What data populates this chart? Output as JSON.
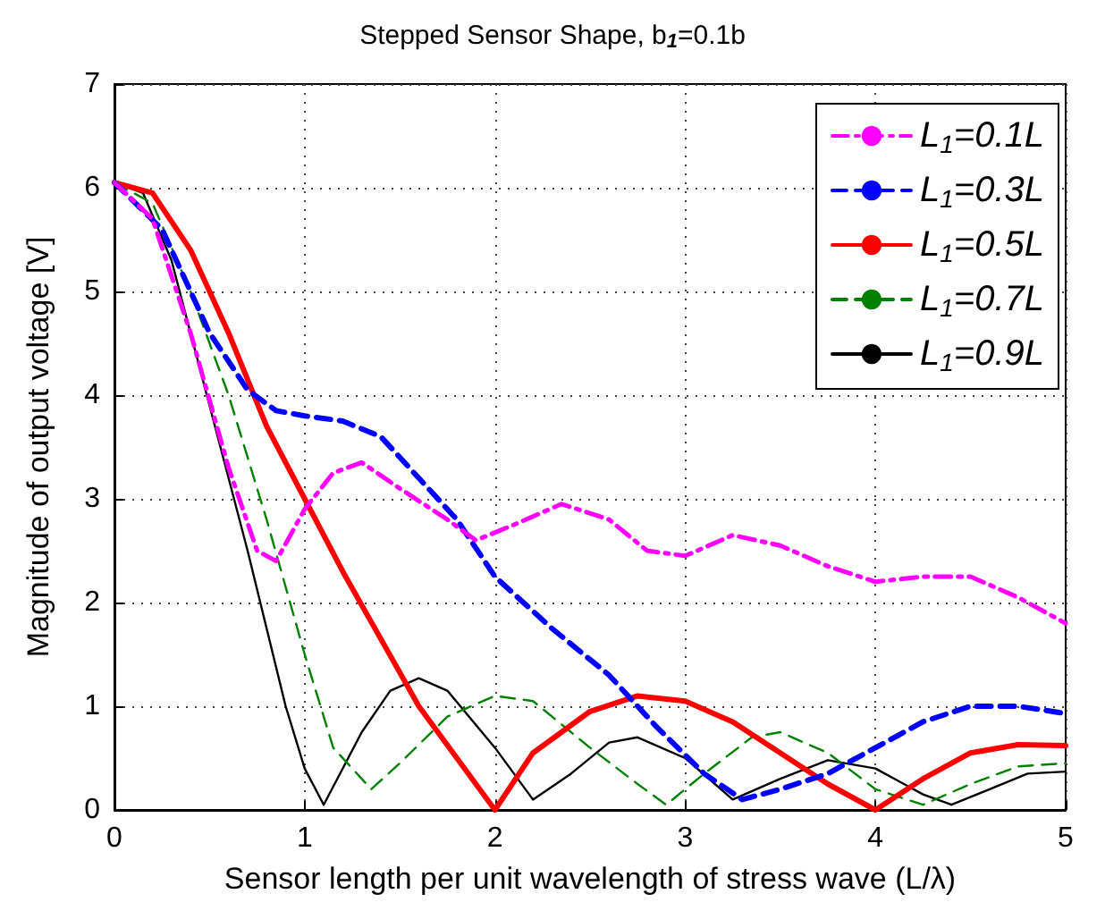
{
  "chart_data": {
    "type": "line",
    "title": "Stepped Sensor Shape, b$_{1}$=0.1b",
    "xlabel": "Sensor length per unit wavelength of stress wave (L/λ)",
    "ylabel": "Magnitude of output voltage [V]",
    "xlim": [
      0,
      5
    ],
    "xticks": [
      0,
      1,
      2,
      3,
      4,
      5
    ],
    "ylim": [
      0,
      7
    ],
    "yticks": [
      0,
      1,
      2,
      3,
      4,
      5,
      6,
      7
    ],
    "grid": true,
    "legend": "top right",
    "marker": "none",
    "series": [
      {
        "name": "L$_{1}$=0.1L",
        "color": "#ff00ff",
        "line_style": "dashdot",
        "x": [
          0,
          0.2,
          0.4,
          0.6,
          0.75,
          0.85,
          1.0,
          1.15,
          1.3,
          1.5,
          1.75,
          1.9,
          2.1,
          2.35,
          2.6,
          2.8,
          3.0,
          3.25,
          3.5,
          3.75,
          4.0,
          4.25,
          4.5,
          4.75,
          5
        ],
        "values": [
          6.05,
          5.7,
          4.6,
          3.3,
          2.5,
          2.4,
          2.9,
          3.25,
          3.35,
          3.1,
          2.8,
          2.6,
          2.75,
          2.95,
          2.8,
          2.5,
          2.45,
          2.65,
          2.55,
          2.35,
          2.2,
          2.25,
          2.25,
          2.05,
          1.8
        ]
      },
      {
        "name": "L$_{1}$=0.3L",
        "color": "#0000ff",
        "line_style": "dashed",
        "x": [
          0,
          0.25,
          0.5,
          0.7,
          0.85,
          1.0,
          1.2,
          1.4,
          1.6,
          1.8,
          2.0,
          2.3,
          2.6,
          2.85,
          3.1,
          3.3,
          3.5,
          3.75,
          4.0,
          4.25,
          4.5,
          4.75,
          5
        ],
        "values": [
          6.05,
          5.6,
          4.6,
          4.05,
          3.85,
          3.8,
          3.75,
          3.6,
          3.2,
          2.8,
          2.25,
          1.75,
          1.3,
          0.8,
          0.35,
          0.1,
          0.2,
          0.35,
          0.6,
          0.85,
          1.0,
          1.0,
          0.93
        ]
      },
      {
        "name": "L$_{1}$=0.5L",
        "color": "#ff0000",
        "line_style": "solid",
        "x": [
          0,
          0.2,
          0.4,
          0.6,
          0.8,
          1.0,
          1.2,
          1.4,
          1.6,
          1.8,
          2.0,
          2.2,
          2.5,
          2.75,
          3.0,
          3.25,
          3.5,
          3.75,
          4.0,
          4.25,
          4.5,
          4.75,
          5
        ],
        "values": [
          6.05,
          5.95,
          5.4,
          4.6,
          3.7,
          3.0,
          2.3,
          1.65,
          1.0,
          0.5,
          0.0,
          0.55,
          0.95,
          1.1,
          1.05,
          0.85,
          0.55,
          0.25,
          0.0,
          0.3,
          0.55,
          0.63,
          0.62
        ]
      },
      {
        "name": "L$_{1}$=0.7L",
        "color": "#008000",
        "line_style": "dashed",
        "x": [
          0,
          0.2,
          0.4,
          0.6,
          0.8,
          1.0,
          1.15,
          1.35,
          1.5,
          1.75,
          2.0,
          2.2,
          2.5,
          2.75,
          2.9,
          3.1,
          3.35,
          3.5,
          3.75,
          4.0,
          4.25,
          4.5,
          4.75,
          5
        ],
        "values": [
          6.05,
          5.85,
          5.0,
          4.0,
          2.8,
          1.5,
          0.6,
          0.2,
          0.45,
          0.9,
          1.1,
          1.05,
          0.6,
          0.25,
          0.05,
          0.35,
          0.7,
          0.75,
          0.55,
          0.2,
          0.05,
          0.25,
          0.42,
          0.45
        ]
      },
      {
        "name": "L$_{1}$=0.9L",
        "color": "#000000",
        "line_style": "solid",
        "x": [
          0,
          0.15,
          0.3,
          0.5,
          0.7,
          0.9,
          1.0,
          1.1,
          1.3,
          1.45,
          1.6,
          1.75,
          2.0,
          2.2,
          2.4,
          2.6,
          2.75,
          3.0,
          3.25,
          3.5,
          3.75,
          4.0,
          4.25,
          4.4,
          4.6,
          4.8,
          5
        ],
        "values": [
          6.05,
          5.95,
          5.3,
          3.9,
          2.5,
          1.0,
          0.4,
          0.05,
          0.75,
          1.15,
          1.27,
          1.15,
          0.6,
          0.1,
          0.35,
          0.65,
          0.7,
          0.5,
          0.1,
          0.3,
          0.48,
          0.4,
          0.15,
          0.05,
          0.2,
          0.35,
          0.37
        ]
      }
    ]
  }
}
